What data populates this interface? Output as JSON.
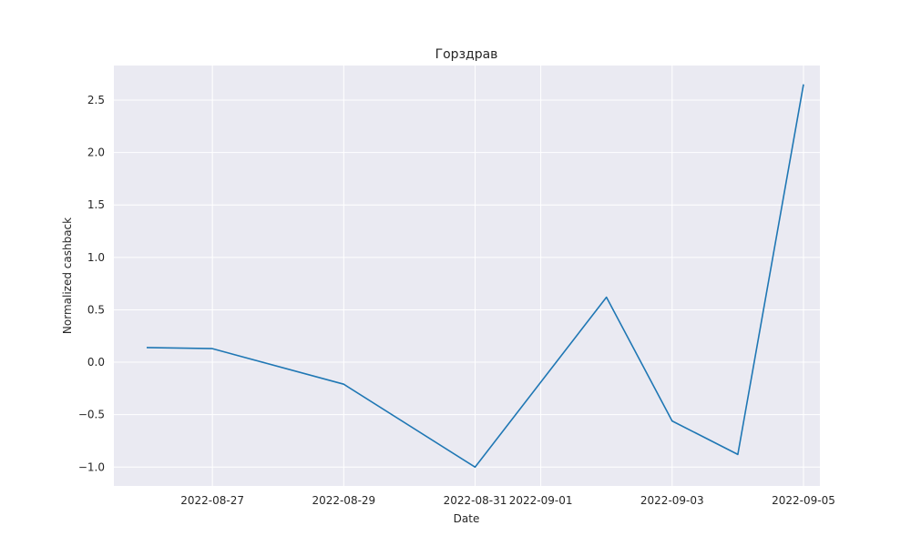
{
  "chart_data": {
    "type": "line",
    "title": "Горздрав",
    "xlabel": "Date",
    "ylabel": "Normalized cashback",
    "x_ticks": [
      "2022-08-27",
      "2022-08-29",
      "2022-08-31",
      "2022-09-01",
      "2022-09-03",
      "2022-09-05"
    ],
    "y_ticks": [
      "−1.0",
      "−0.5",
      "0.0",
      "0.5",
      "1.0",
      "1.5",
      "2.0",
      "2.5"
    ],
    "y_tick_values": [
      -1.0,
      -0.5,
      0.0,
      0.5,
      1.0,
      1.5,
      2.0,
      2.5
    ],
    "xlim": [
      "2022-08-25",
      "2022-09-05"
    ],
    "ylim": [
      -1.18,
      2.83
    ],
    "grid": true,
    "series": [
      {
        "color": "#1f77b4",
        "x": [
          "2022-08-26",
          "2022-08-27",
          "2022-08-29",
          "2022-08-31",
          "2022-09-02",
          "2022-09-03",
          "2022-09-04",
          "2022-09-05"
        ],
        "values": [
          0.14,
          0.13,
          -0.21,
          -1.0,
          0.62,
          -0.56,
          -0.88,
          2.65
        ]
      }
    ],
    "background": "#eaeaf2"
  }
}
